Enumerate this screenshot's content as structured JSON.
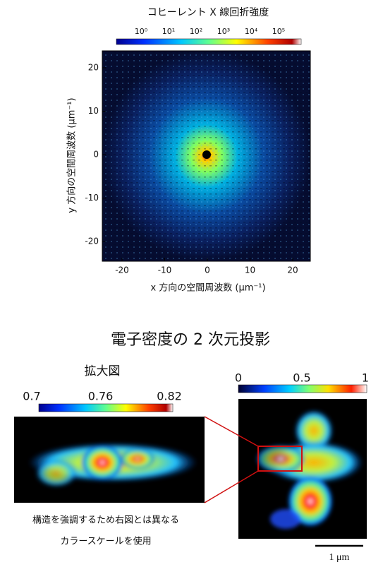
{
  "top": {
    "title": "コヒーレント X 線回折強度",
    "colorbar_labels": [
      "10⁰",
      "10¹",
      "10²",
      "10³",
      "10⁴",
      "10⁵"
    ],
    "x_ticks": [
      "-20",
      "-10",
      "0",
      "10",
      "20"
    ],
    "y_ticks": [
      "20",
      "10",
      "0",
      "-10",
      "-20"
    ],
    "x_axis_label": "x 方向の空間周波数 (μm⁻¹)",
    "y_axis_label": "y 方向の空間周波数 (μm⁻¹)"
  },
  "bottom": {
    "title": "電子密度の 2 次元投影",
    "zoom_title": "拡大図",
    "zoom_colorbar_labels": [
      "0.7",
      "0.76",
      "0.82"
    ],
    "caption": [
      "構造を強調するため右図とは異なる",
      "カラースケールを使用"
    ],
    "main_colorbar_labels": [
      "0",
      "0.5",
      "1"
    ],
    "scale_bar_label": "1 μm"
  }
}
